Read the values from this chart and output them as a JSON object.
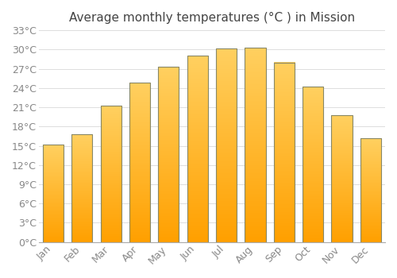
{
  "title": "Average monthly temperatures (°C ) in Mission",
  "months": [
    "Jan",
    "Feb",
    "Mar",
    "Apr",
    "May",
    "Jun",
    "Jul",
    "Aug",
    "Sep",
    "Oct",
    "Nov",
    "Dec"
  ],
  "temperatures": [
    15.2,
    16.8,
    21.2,
    24.8,
    27.3,
    29.0,
    30.2,
    30.3,
    28.0,
    24.2,
    19.8,
    16.2
  ],
  "bar_color_top": "#FFD060",
  "bar_color_bottom": "#FFA000",
  "bar_edge_color": "#888866",
  "background_color": "#FFFFFF",
  "grid_color": "#DDDDDD",
  "text_color": "#888888",
  "title_color": "#444444",
  "ylim": [
    0,
    33
  ],
  "yticks": [
    0,
    3,
    6,
    9,
    12,
    15,
    18,
    21,
    24,
    27,
    30,
    33
  ],
  "title_fontsize": 11,
  "tick_fontsize": 9,
  "bar_width": 0.72
}
